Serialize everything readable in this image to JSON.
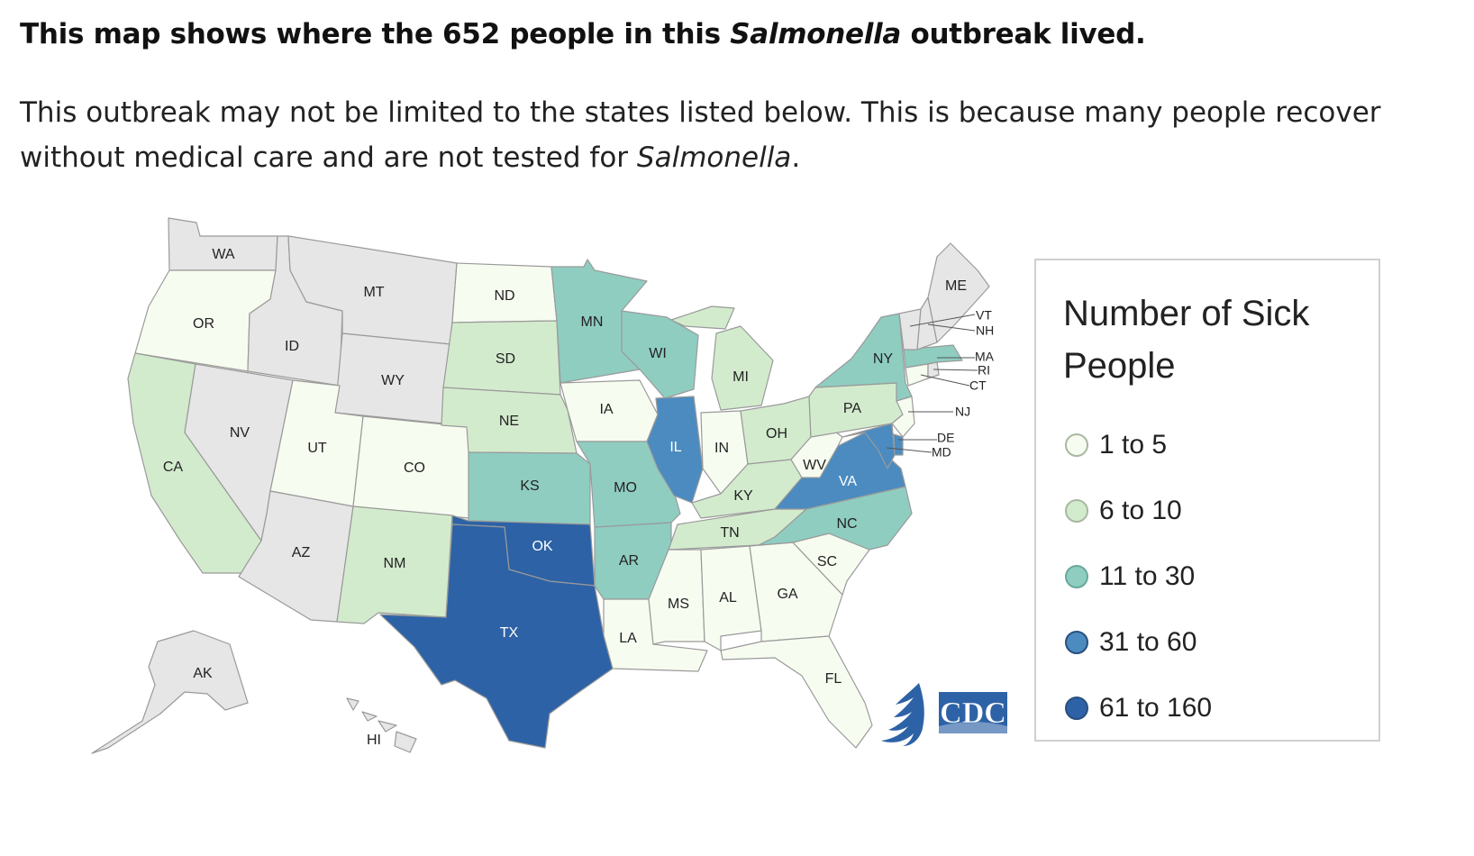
{
  "headline": {
    "before": "This map shows where the 652 people in this ",
    "italic": "Salmonella",
    "after": " outbreak lived."
  },
  "intro": {
    "before": "This outbreak may not be limited to the states listed below. This is because many people recover without medical care and are not tested for ",
    "italic": "Salmonella",
    "after": "."
  },
  "legend": {
    "title": "Number of Sick People",
    "bins": [
      {
        "label": "1 to 5",
        "color": "#f7fcf0"
      },
      {
        "label": "6 to 10",
        "color": "#d3ebcd"
      },
      {
        "label": "11 to 30",
        "color": "#8fcdc1"
      },
      {
        "label": "31 to 60",
        "color": "#4b8bc0"
      },
      {
        "label": "61 to 160",
        "color": "#2d62a6"
      }
    ]
  },
  "no_case_color": "#e6e6e6",
  "logo": "cdc-logo",
  "states": [
    {
      "code": "WA",
      "bin": null
    },
    {
      "code": "OR",
      "bin": 0
    },
    {
      "code": "CA",
      "bin": 1
    },
    {
      "code": "ID",
      "bin": null
    },
    {
      "code": "NV",
      "bin": null
    },
    {
      "code": "MT",
      "bin": null
    },
    {
      "code": "WY",
      "bin": null
    },
    {
      "code": "UT",
      "bin": 0
    },
    {
      "code": "AZ",
      "bin": null
    },
    {
      "code": "CO",
      "bin": 0
    },
    {
      "code": "NM",
      "bin": 1
    },
    {
      "code": "ND",
      "bin": 0
    },
    {
      "code": "SD",
      "bin": 1
    },
    {
      "code": "NE",
      "bin": 1
    },
    {
      "code": "KS",
      "bin": 2
    },
    {
      "code": "OK",
      "bin": 4
    },
    {
      "code": "TX",
      "bin": 4
    },
    {
      "code": "MN",
      "bin": 2
    },
    {
      "code": "IA",
      "bin": 0
    },
    {
      "code": "MO",
      "bin": 2
    },
    {
      "code": "AR",
      "bin": 2
    },
    {
      "code": "LA",
      "bin": 0
    },
    {
      "code": "WI",
      "bin": 2
    },
    {
      "code": "IL",
      "bin": 3
    },
    {
      "code": "MI",
      "bin": 1
    },
    {
      "code": "IN",
      "bin": 0
    },
    {
      "code": "OH",
      "bin": 1
    },
    {
      "code": "KY",
      "bin": 1
    },
    {
      "code": "TN",
      "bin": 1
    },
    {
      "code": "MS",
      "bin": 0
    },
    {
      "code": "AL",
      "bin": 0
    },
    {
      "code": "GA",
      "bin": 0
    },
    {
      "code": "FL",
      "bin": 0
    },
    {
      "code": "SC",
      "bin": 0
    },
    {
      "code": "NC",
      "bin": 2
    },
    {
      "code": "VA",
      "bin": 3
    },
    {
      "code": "WV",
      "bin": 0
    },
    {
      "code": "PA",
      "bin": 1
    },
    {
      "code": "NY",
      "bin": 2
    },
    {
      "code": "NJ",
      "bin": 0
    },
    {
      "code": "DE",
      "bin": 3
    },
    {
      "code": "MD",
      "bin": 3
    },
    {
      "code": "CT",
      "bin": 0
    },
    {
      "code": "RI",
      "bin": null
    },
    {
      "code": "MA",
      "bin": 2
    },
    {
      "code": "VT",
      "bin": null
    },
    {
      "code": "NH",
      "bin": null
    },
    {
      "code": "ME",
      "bin": null
    },
    {
      "code": "AK",
      "bin": null
    },
    {
      "code": "HI",
      "bin": null
    }
  ]
}
